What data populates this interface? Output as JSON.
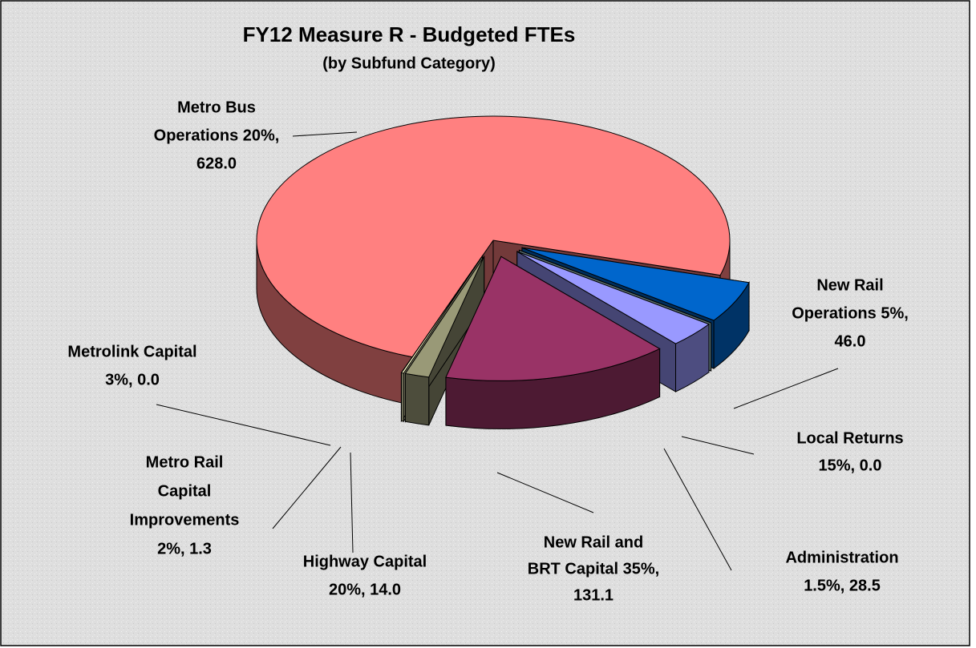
{
  "chart_data": {
    "type": "pie3d",
    "title": "FY12 Measure R - Budgeted FTEs",
    "subtitle": "(by Subfund Category)",
    "labels": [
      [
        "Metro Bus",
        "Operations 20%,",
        "628.0"
      ],
      [
        "New Rail",
        "Operations 5%,",
        "46.0"
      ],
      [
        "Local Returns",
        "15%, 0.0"
      ],
      [
        "Administration",
        "1.5%, 28.5"
      ],
      [
        "New Rail and",
        "BRT Capital 35%,",
        "131.1"
      ],
      [
        "Highway Capital",
        "20%, 14.0"
      ],
      [
        "Metro Rail",
        "Capital",
        "Improvements",
        "2%, 1.3"
      ],
      [
        "Metrolink Capital",
        "3%, 0.0"
      ]
    ],
    "values": [
      628.0,
      46.0,
      0.0,
      28.5,
      131.1,
      14.0,
      1.3,
      0.0
    ],
    "colors": [
      "#ff8080",
      "#0066cc",
      "#ccffff",
      "#9999ff",
      "#993366",
      "#999977",
      "#ffffcc",
      "#ccffcc"
    ]
  }
}
